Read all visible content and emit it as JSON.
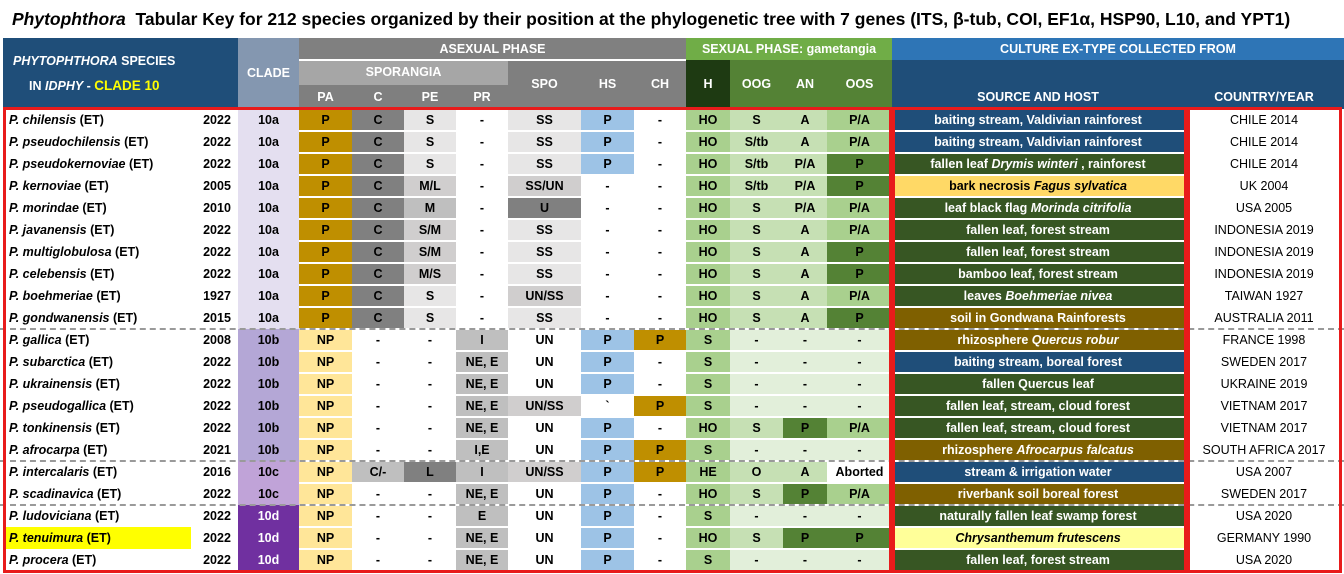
{
  "title": {
    "genus": "Phytophthora",
    "rest": "Tabular Key for 212 species organized by their position at the phylogenetic tree with 7 genes (ITS, β-tub, COI, EF1α, HSP90, L10, and YPT1)"
  },
  "header": {
    "species_line1_genus": "PHYTOPHTHORA",
    "species_line1_rest": "SPECIES",
    "species_line2_prefix": "IN",
    "species_line2_idphy": "IDPHY",
    "species_line2_dash": " - ",
    "species_line2_clade": "CLADE 10",
    "clade": "CLADE",
    "asexual_phase": "ASEXUAL PHASE",
    "sporangia": "SPORANGIA",
    "sexual_phase": "SEXUAL PHASE: gametangia",
    "culture": "CULTURE EX-TYPE COLLECTED FROM",
    "columns": {
      "pa": "PA",
      "c": "C",
      "pe": "PE",
      "pr": "PR",
      "spo": "SPO",
      "hs": "HS",
      "ch": "CH",
      "h": "H",
      "oog": "OOG",
      "an": "AN",
      "oos": "OOS",
      "source": "SOURCE AND HOST",
      "country": "COUNTRY/YEAR"
    }
  },
  "colors": {
    "header_blue": "#1f4e79",
    "asexual_grey": "#808080",
    "sexual_green": "#70ad47",
    "culture_blue": "#2e75b6",
    "red_frame": "#e81b1b",
    "ochre": "#bf8f00",
    "dark_green": "#375623",
    "highlight_yellow": "#ffff00"
  },
  "rows": [
    {
      "species": "P. chilensis",
      "tag": "(ET)",
      "year": "2022",
      "clade": "10a",
      "pa": "P",
      "c": "C",
      "pe": "S",
      "pr": "-",
      "spo": "SS",
      "hs": "P",
      "ch": "-",
      "h": "HO",
      "oog": "S",
      "an": "A",
      "oos": "P/A",
      "source": [
        {
          "t": "baiting stream, Valdivian rainforest",
          "i": false
        }
      ],
      "country": "CHILE 2014"
    },
    {
      "species": "P. pseudochilensis",
      "tag": "(ET)",
      "year": "2022",
      "clade": "10a",
      "pa": "P",
      "c": "C",
      "pe": "S",
      "pr": "-",
      "spo": "SS",
      "hs": "P",
      "ch": "-",
      "h": "HO",
      "oog": "S/tb",
      "an": "A",
      "oos": "P/A",
      "source": [
        {
          "t": "baiting stream, Valdivian rainforest",
          "i": false
        }
      ],
      "country": "CHILE 2014"
    },
    {
      "species": "P. pseudokernoviae",
      "tag": "(ET)",
      "year": "2022",
      "clade": "10a",
      "pa": "P",
      "c": "C",
      "pe": "S",
      "pr": "-",
      "spo": "SS",
      "hs": "P",
      "ch": "-",
      "h": "HO",
      "oog": "S/tb",
      "an": "P/A",
      "oos": "P",
      "source": [
        {
          "t": "fallen leaf ",
          "i": false
        },
        {
          "t": "Drymis winteri",
          "i": true
        },
        {
          "t": " , rainforest",
          "i": false
        }
      ],
      "country": "CHILE 2014"
    },
    {
      "species": "P. kernoviae",
      "tag": "(ET)",
      "year": "2005",
      "clade": "10a",
      "pa": "P",
      "c": "C",
      "pe": "M/L",
      "pr": "-",
      "spo": "SS/UN",
      "hs": "-",
      "ch": "-",
      "h": "HO",
      "oog": "S/tb",
      "an": "P/A",
      "oos": "P",
      "source": [
        {
          "t": "bark necrosis ",
          "i": false
        },
        {
          "t": "Fagus sylvatica",
          "i": true
        }
      ],
      "country": "UK 2004"
    },
    {
      "species": "P. morindae",
      "tag": "(ET)",
      "year": "2010",
      "clade": "10a",
      "pa": "P",
      "c": "C",
      "pe": "M",
      "pr": "-",
      "spo": "U",
      "hs": "-",
      "ch": "-",
      "h": "HO",
      "oog": "S",
      "an": "P/A",
      "oos": "P/A",
      "source": [
        {
          "t": "leaf black flag ",
          "i": false
        },
        {
          "t": "Morinda citrifolia",
          "i": true
        }
      ],
      "country": "USA 2005"
    },
    {
      "species": "P. javanensis",
      "tag": "(ET)",
      "year": "2022",
      "clade": "10a",
      "pa": "P",
      "c": "C",
      "pe": "S/M",
      "pr": "-",
      "spo": "SS",
      "hs": "-",
      "ch": "-",
      "h": "HO",
      "oog": "S",
      "an": "A",
      "oos": "P/A",
      "source": [
        {
          "t": "fallen leaf, forest stream",
          "i": false
        }
      ],
      "country": "INDONESIA 2019"
    },
    {
      "species": "P. multiglobulosa",
      "tag": "(ET)",
      "year": "2022",
      "clade": "10a",
      "pa": "P",
      "c": "C",
      "pe": "S/M",
      "pr": "-",
      "spo": "SS",
      "hs": "-",
      "ch": "-",
      "h": "HO",
      "oog": "S",
      "an": "A",
      "oos": "P",
      "source": [
        {
          "t": "fallen leaf, forest stream",
          "i": false
        }
      ],
      "country": "INDONESIA 2019"
    },
    {
      "species": "P. celebensis",
      "tag": "(ET)",
      "year": "2022",
      "clade": "10a",
      "pa": "P",
      "c": "C",
      "pe": "M/S",
      "pr": "-",
      "spo": "SS",
      "hs": "-",
      "ch": "-",
      "h": "HO",
      "oog": "S",
      "an": "A",
      "oos": "P",
      "source": [
        {
          "t": "bamboo leaf, forest stream",
          "i": false
        }
      ],
      "country": "INDONESIA 2019"
    },
    {
      "species": "P. boehmeriae",
      "tag": "(ET)",
      "year": "1927",
      "clade": "10a",
      "pa": "P",
      "c": "C",
      "pe": "S",
      "pr": "-",
      "spo": "UN/SS",
      "hs": "-",
      "ch": "-",
      "h": "HO",
      "oog": "S",
      "an": "A",
      "oos": "P/A",
      "source": [
        {
          "t": "leaves ",
          "i": false
        },
        {
          "t": "Boehmeriae nivea",
          "i": true
        }
      ],
      "country": "TAIWAN 1927"
    },
    {
      "species": "P. gondwanensis",
      "tag": "(ET)",
      "year": "2015",
      "clade": "10a",
      "pa": "P",
      "c": "C",
      "pe": "S",
      "pr": "-",
      "spo": "SS",
      "hs": "-",
      "ch": "-",
      "h": "HO",
      "oog": "S",
      "an": "A",
      "oos": "P",
      "source": [
        {
          "t": "soil in Gondwana Rainforests",
          "i": false
        }
      ],
      "country": "AUSTRALIA 2011"
    },
    {
      "species": "P. gallica",
      "tag": "(ET)",
      "year": "2008",
      "clade": "10b",
      "pa": "NP",
      "c": "-",
      "pe": "-",
      "pr": "I",
      "spo": "UN",
      "hs": "P",
      "ch": "P",
      "h": "S",
      "oog": "-",
      "an": "-",
      "oos": "-",
      "source": [
        {
          "t": "rhizosphere ",
          "i": false
        },
        {
          "t": "Quercus robur",
          "i": true
        }
      ],
      "country": "FRANCE 1998"
    },
    {
      "species": "P. subarctica",
      "tag": "(ET)",
      "year": "2022",
      "clade": "10b",
      "pa": "NP",
      "c": "-",
      "pe": "-",
      "pr": "NE, E",
      "spo": "UN",
      "hs": "P",
      "ch": "-",
      "h": "S",
      "oog": "-",
      "an": "-",
      "oos": "-",
      "source": [
        {
          "t": "baiting stream, boreal forest",
          "i": false
        }
      ],
      "country": "SWEDEN 2017"
    },
    {
      "species": "P. ukrainensis",
      "tag": "(ET)",
      "year": "2022",
      "clade": "10b",
      "pa": "NP",
      "c": "-",
      "pe": "-",
      "pr": "NE, E",
      "spo": "UN",
      "hs": "P",
      "ch": "-",
      "h": "S",
      "oog": "-",
      "an": "-",
      "oos": "-",
      "source": [
        {
          "t": "fallen Quercus leaf",
          "i": false
        }
      ],
      "country": "UKRAINE 2019"
    },
    {
      "species": "P. pseudogallica",
      "tag": "(ET)",
      "year": "2022",
      "clade": "10b",
      "pa": "NP",
      "c": "-",
      "pe": "-",
      "pr": "NE, E",
      "spo": "UN/SS",
      "hs": "`",
      "ch": "P",
      "h": "S",
      "oog": "-",
      "an": "-",
      "oos": "-",
      "source": [
        {
          "t": "fallen leaf, stream, cloud forest",
          "i": false
        }
      ],
      "country": "VIETNAM 2017"
    },
    {
      "species": "P. tonkinensis",
      "tag": "(ET)",
      "year": "2022",
      "clade": "10b",
      "pa": "NP",
      "c": "-",
      "pe": "-",
      "pr": "NE, E",
      "spo": "UN",
      "hs": "P",
      "ch": "-",
      "h": "HO",
      "oog": "S",
      "an": "P",
      "oos": "P/A",
      "source": [
        {
          "t": "fallen leaf, stream, cloud forest",
          "i": false
        }
      ],
      "country": "VIETNAM 2017"
    },
    {
      "species": "P. afrocarpa",
      "tag": "(ET)",
      "year": "2021",
      "clade": "10b",
      "pa": "NP",
      "c": "-",
      "pe": "-",
      "pr": "I,E",
      "spo": "UN",
      "hs": "P",
      "ch": "P",
      "h": "S",
      "oog": "-",
      "an": "-",
      "oos": "-",
      "source": [
        {
          "t": "rhizosphere ",
          "i": false
        },
        {
          "t": "Afrocarpus falcatus",
          "i": true
        }
      ],
      "country": "SOUTH AFRICA 2017"
    },
    {
      "species": "P. intercalaris",
      "tag": "(ET)",
      "year": "2016",
      "clade": "10c",
      "pa": "NP",
      "c": "C/-",
      "pe": "L",
      "pr": "I",
      "spo": "UN/SS",
      "hs": "P",
      "ch": "P",
      "h": "HE",
      "oog": "O",
      "an": "A",
      "oos": "Aborted",
      "source": [
        {
          "t": "stream & irrigation water",
          "i": false
        }
      ],
      "country": "USA 2007"
    },
    {
      "species": "P. scadinavica",
      "tag": "(ET)",
      "year": "2022",
      "clade": "10c",
      "pa": "NP",
      "c": "-",
      "pe": "-",
      "pr": "NE, E",
      "spo": "UN",
      "hs": "P",
      "ch": "-",
      "h": "HO",
      "oog": "S",
      "an": "P",
      "oos": "P/A",
      "source": [
        {
          "t": "riverbank soil boreal forest",
          "i": false
        }
      ],
      "country": "SWEDEN 2017"
    },
    {
      "species": "P. ludoviciana",
      "tag": "(ET)",
      "year": "2022",
      "clade": "10d",
      "pa": "NP",
      "c": "-",
      "pe": "-",
      "pr": "E",
      "spo": "UN",
      "hs": "P",
      "ch": "-",
      "h": "S",
      "oog": "-",
      "an": "-",
      "oos": "-",
      "source": [
        {
          "t": "naturally fallen leaf swamp forest",
          "i": false
        }
      ],
      "country": "USA 2020"
    },
    {
      "species": "P. tenuimura",
      "tag": "(ET)",
      "year": "2022",
      "clade": "10d",
      "pa": "NP",
      "c": "-",
      "pe": "-",
      "pr": "NE, E",
      "spo": "UN",
      "hs": "P",
      "ch": "-",
      "h": "HO",
      "oog": "S",
      "an": "P",
      "oos": "P",
      "source": [
        {
          "t": "Chrysanthemum frutescens",
          "i": true
        }
      ],
      "country": "GERMANY 1990"
    },
    {
      "species": "P. procera",
      "tag": "(ET)",
      "year": "2022",
      "clade": "10d",
      "pa": "NP",
      "c": "-",
      "pe": "-",
      "pr": "NE, E",
      "spo": "UN",
      "hs": "P",
      "ch": "-",
      "h": "S",
      "oog": "-",
      "an": "-",
      "oos": "-",
      "source": [
        {
          "t": "fallen leaf, forest stream",
          "i": false
        }
      ],
      "country": "USA 2020"
    }
  ]
}
